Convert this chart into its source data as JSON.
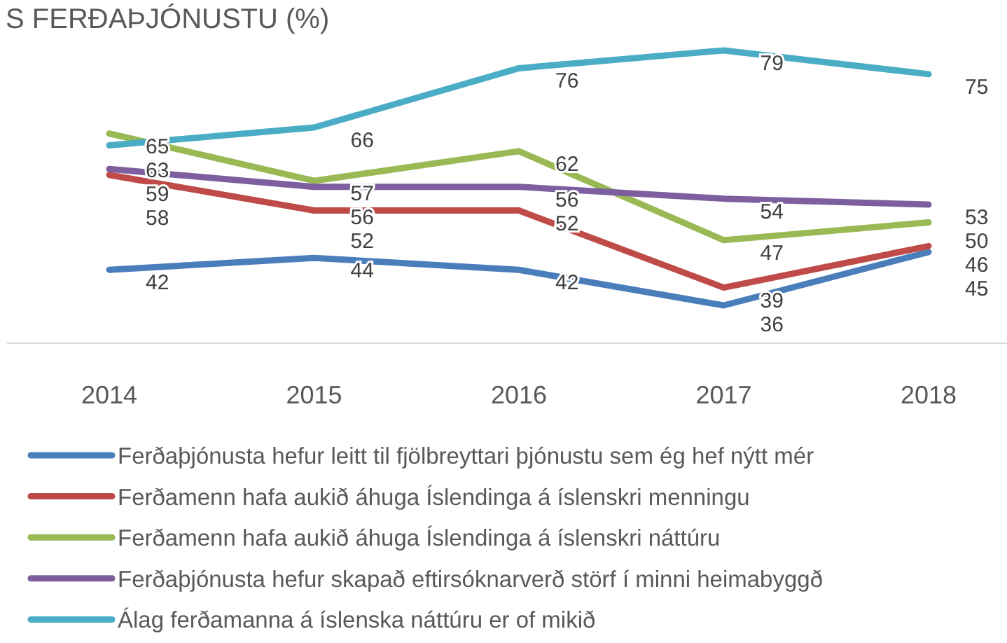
{
  "chart_data": {
    "type": "line",
    "title": "S FERÐAÞJÓNUSTU (%)",
    "categories": [
      "2014",
      "2015",
      "2016",
      "2017",
      "2018"
    ],
    "data_labels": true,
    "legend": "bottom",
    "marker": "none",
    "series": [
      {
        "name": "Ferðaþjónusta hefur leitt til fjölbreyttari þjónustu sem ég hef nýtt mér",
        "color": "#4a7ebb",
        "values": [
          42,
          44,
          42,
          36,
          45
        ]
      },
      {
        "name": "Ferðamenn hafa aukið áhuga Íslendinga á íslenskri menningu",
        "color": "#be4b48",
        "values": [
          58,
          52,
          52,
          39,
          46
        ]
      },
      {
        "name": "Ferðamenn hafa aukið áhuga Íslendinga á íslenskri náttúru",
        "color": "#98b954",
        "values": [
          65,
          57,
          62,
          47,
          50
        ]
      },
      {
        "name": "Ferðaþjónusta hefur skapað eftirsóknarverð störf í minni heimabyggð",
        "color": "#7d5fa0",
        "values": [
          59,
          56,
          56,
          54,
          53
        ]
      },
      {
        "name": "Álag ferðamanna á íslenska náttúru er of mikið",
        "color": "#4bacc6",
        "values": [
          63,
          66,
          76,
          79,
          75
        ]
      }
    ]
  }
}
